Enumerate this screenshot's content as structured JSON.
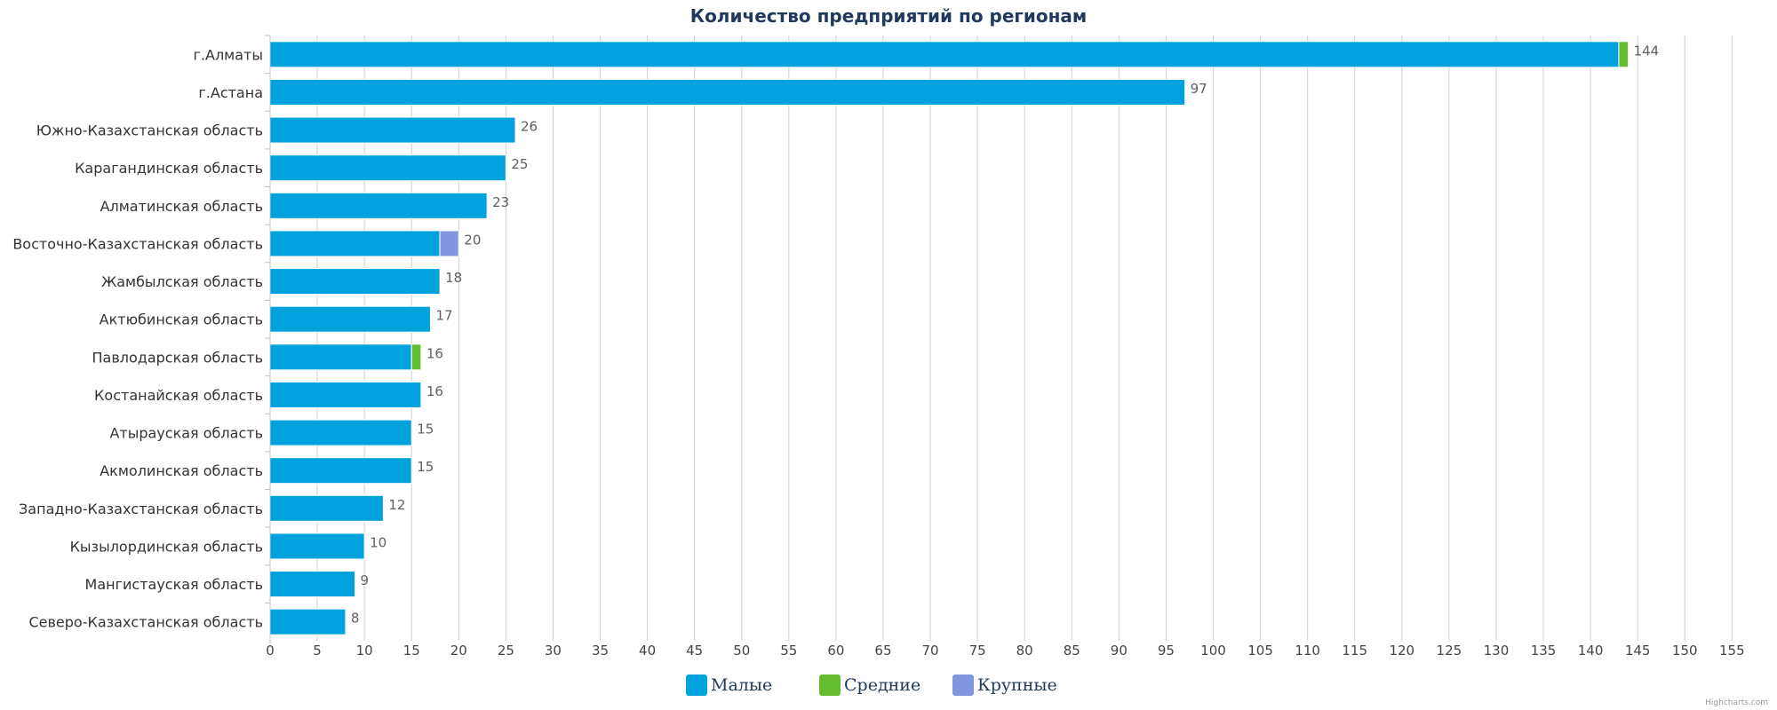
{
  "chart_data": {
    "type": "bar",
    "orientation": "horizontal",
    "stacked": true,
    "title": "Количество предприятий по регионам",
    "categories": [
      "г.Алматы",
      "г.Астана",
      "Южно-Казахстанская область",
      "Карагандинская область",
      "Алматинская область",
      "Восточно-Казахстанская область",
      "Жамбылская область",
      "Актюбинская область",
      "Павлодарская область",
      "Костанайская область",
      "Атырауская область",
      "Акмолинская область",
      "Западно-Казахстанская область",
      "Кызылординская область",
      "Мангистауская область",
      "Северо-Казахстанская область"
    ],
    "series": [
      {
        "name": "Малые",
        "color": "#00a2de",
        "values": [
          143,
          97,
          26,
          25,
          23,
          18,
          18,
          17,
          15,
          16,
          15,
          15,
          12,
          10,
          9,
          8
        ]
      },
      {
        "name": "Средние",
        "color": "#64bc2f",
        "values": [
          1,
          0,
          0,
          0,
          0,
          0,
          0,
          0,
          1,
          0,
          0,
          0,
          0,
          0,
          0,
          0
        ]
      },
      {
        "name": "Крупные",
        "color": "#8397e0",
        "values": [
          0,
          0,
          0,
          0,
          0,
          2,
          0,
          0,
          0,
          0,
          0,
          0,
          0,
          0,
          0,
          0
        ]
      }
    ],
    "totals": [
      144,
      97,
      26,
      25,
      23,
      20,
      18,
      17,
      16,
      16,
      15,
      15,
      12,
      10,
      9,
      8
    ],
    "xlim": [
      0,
      155
    ],
    "xticks": [
      0,
      5,
      10,
      15,
      20,
      25,
      30,
      35,
      40,
      45,
      50,
      55,
      60,
      65,
      70,
      75,
      80,
      85,
      90,
      95,
      100,
      105,
      110,
      115,
      120,
      125,
      130,
      135,
      140,
      145,
      150,
      155
    ],
    "grid": true,
    "legend": "bottom-center"
  },
  "credits": "Highcharts.com"
}
